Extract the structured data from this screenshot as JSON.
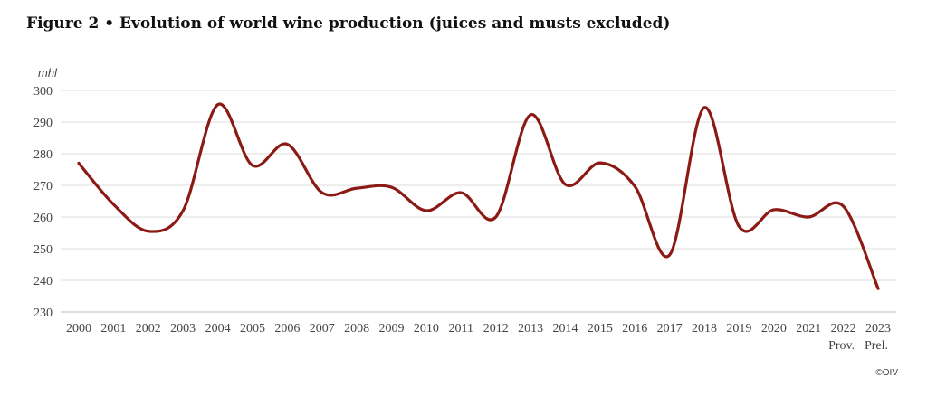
{
  "chart_data": {
    "type": "line",
    "title": "Figure 2 • Evolution of world wine production (juices and musts excluded)",
    "ylabel": "mhl",
    "xlabel": "",
    "ylim": [
      230,
      300
    ],
    "yticks": [
      230,
      240,
      250,
      260,
      270,
      280,
      290,
      300
    ],
    "grid": true,
    "categories": [
      "2000",
      "2001",
      "2002",
      "2003",
      "2004",
      "2005",
      "2006",
      "2007",
      "2008",
      "2009",
      "2010",
      "2011",
      "2012",
      "2013",
      "2014",
      "2015",
      "2016",
      "2017",
      "2018",
      "2019",
      "2020",
      "2021",
      "2022",
      "2023"
    ],
    "category_sublabels": {
      "2022": "Prov.",
      "2023": "Prel."
    },
    "series": [
      {
        "values": [
          277,
          264,
          255.5,
          262,
          295.5,
          276.3,
          283,
          267.7,
          269.1,
          269.4,
          262,
          267.7,
          260,
          292.3,
          270.3,
          277.1,
          269.7,
          248,
          294.6,
          257,
          262.3,
          260,
          263.4,
          237.4
        ],
        "color": "#8b1a14"
      }
    ],
    "credit": "©OIV"
  }
}
